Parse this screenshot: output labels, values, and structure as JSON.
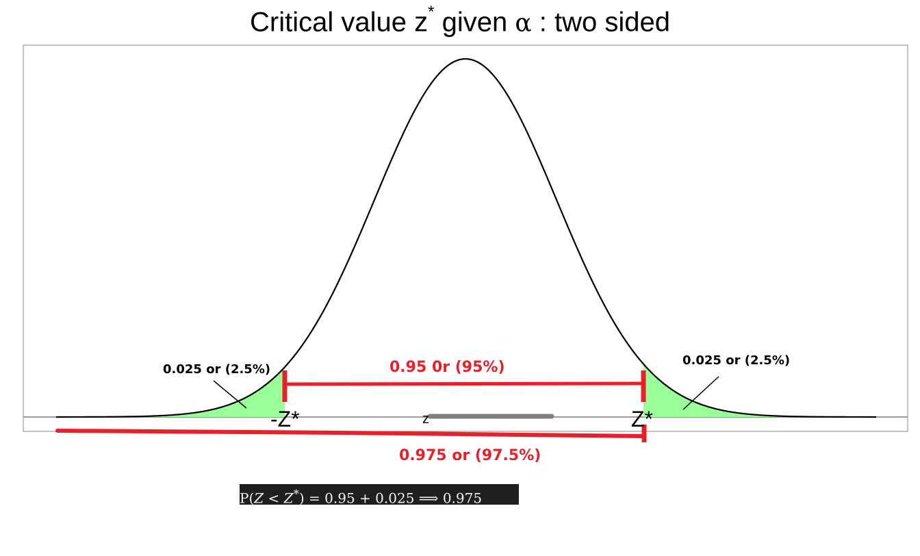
{
  "title": {
    "text_before": "Critical value z",
    "superscript": "*",
    "text_middle": " given ",
    "alpha_symbol": "α",
    "text_after": " : two sided"
  },
  "labels": {
    "left_tail": "0.025 or (2.5%)",
    "right_tail": "0.025 or (2.5%)",
    "middle_area": "0.95 0r (95%)",
    "cumulative": "0.975 or (97.5%)",
    "neg_critical": "-Z*",
    "pos_critical": "Z*",
    "center_axis": "z"
  },
  "formula": {
    "lhs_open": "P(",
    "var_z": "Z",
    "lt": " < ",
    "var_zstar": "Z",
    "star": "*",
    "rhs": ") = 0.95 + 0.025  ⟹  0.975"
  },
  "colors": {
    "curve": "#000000",
    "tail_fill": "#99ff99",
    "annotation_red": "#e8202a",
    "axis": "#999999",
    "frame": "#888888",
    "center_bar": "#808080",
    "formula_bg": "#1f1f1f"
  },
  "chart_data": {
    "type": "area",
    "distribution": "standard normal",
    "shaded_regions": [
      {
        "name": "left tail",
        "from": "-inf",
        "to": "-Z*",
        "area": 0.025
      },
      {
        "name": "right tail",
        "from": "Z*",
        "to": "inf",
        "area": 0.025
      }
    ],
    "middle_area": 0.95,
    "cumulative_to_zstar": 0.975
  }
}
